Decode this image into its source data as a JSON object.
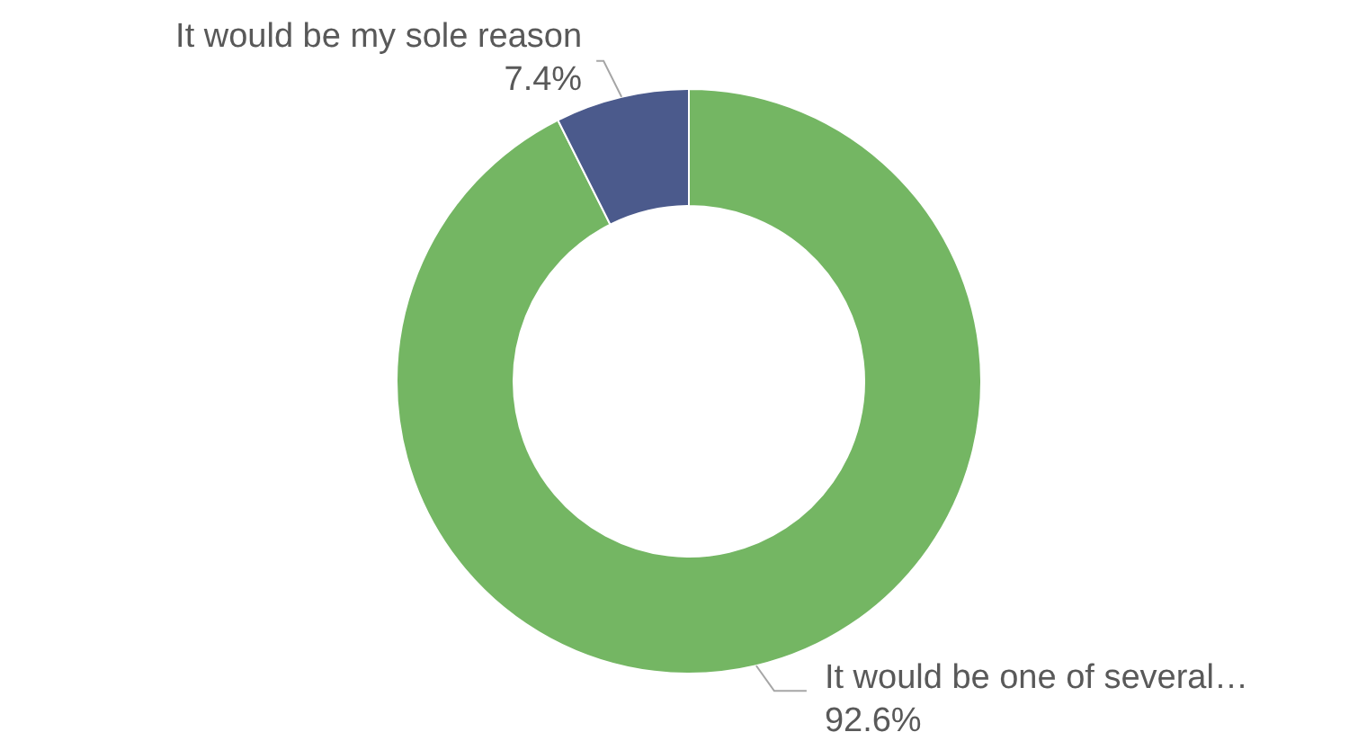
{
  "chart_data": {
    "type": "donut",
    "categories": [
      "It would be one of several…",
      "It would be my sole reason"
    ],
    "values": [
      92.6,
      7.4
    ],
    "colors": [
      "#74b663",
      "#4b5a8c"
    ],
    "value_labels": [
      "92.6%",
      "7.4%"
    ],
    "legend": false
  }
}
